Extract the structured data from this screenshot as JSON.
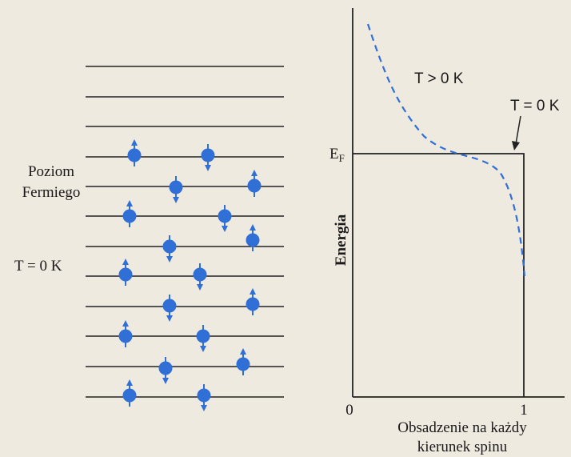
{
  "labels": {
    "fermi_level": [
      "Poziom",
      "Fermiego"
    ],
    "temp_left": "T = 0 K",
    "temp_warm": "T > 0 K",
    "temp_zero": "T = 0 K",
    "fermi_energy": "E",
    "fermi_energy_sub": "F",
    "y_axis": "Energia",
    "x_tick_min": 0,
    "x_tick_max": 1,
    "x_axis": [
      "Obsadzenie na każdy",
      "kierunek spinu"
    ]
  }
}
